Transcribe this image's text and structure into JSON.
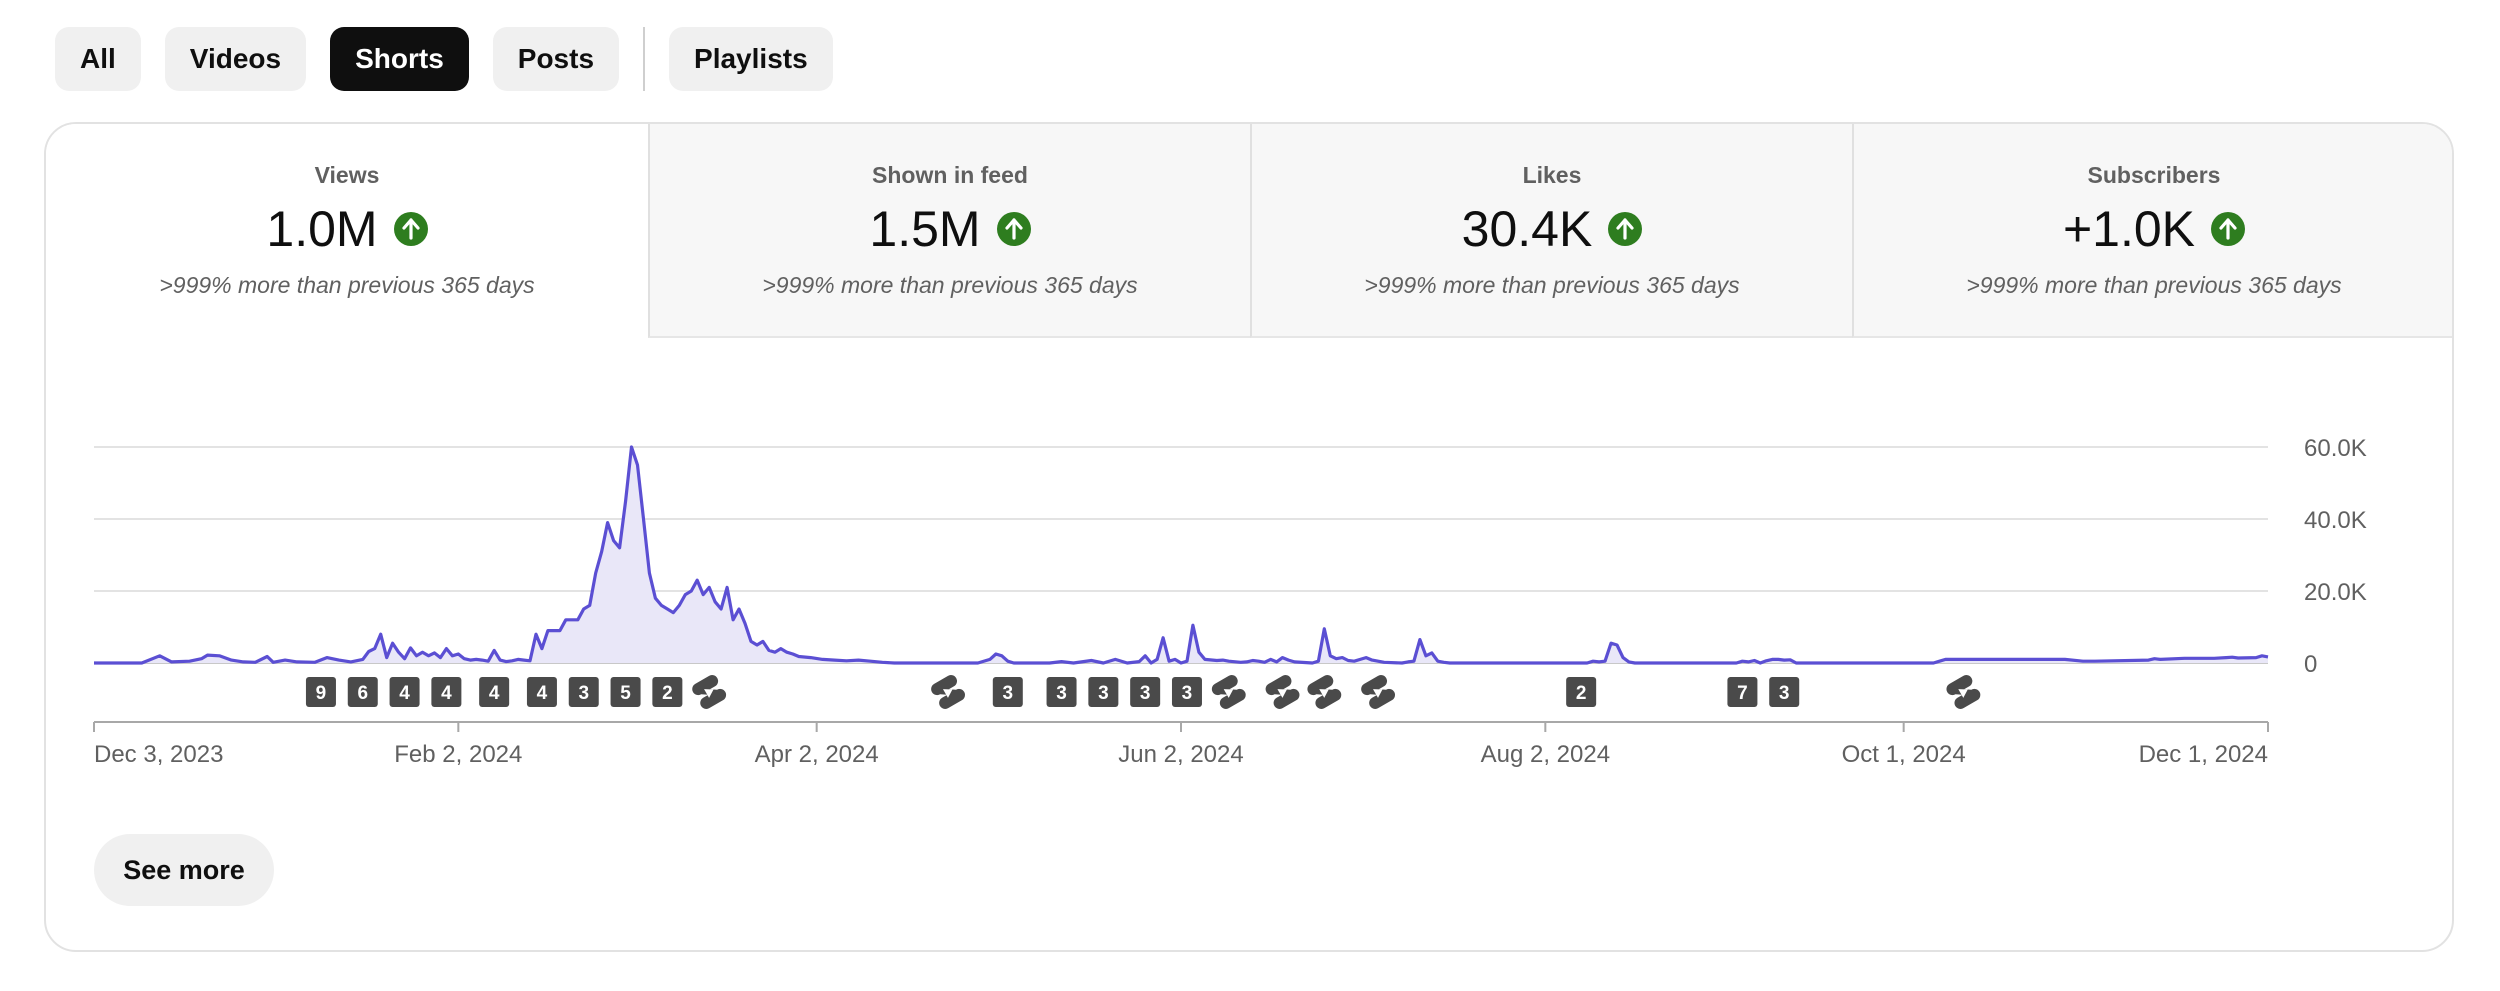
{
  "tabs": [
    {
      "label": "All",
      "active": false
    },
    {
      "label": "Videos",
      "active": false
    },
    {
      "label": "Shorts",
      "active": true
    },
    {
      "label": "Posts",
      "active": false
    },
    {
      "label": "Playlists",
      "active": false
    }
  ],
  "metrics": [
    {
      "label": "Views",
      "value": "1.0M",
      "comparison": ">999% more than previous 365 days",
      "trend": "up",
      "selected": true
    },
    {
      "label": "Shown in feed",
      "value": "1.5M",
      "comparison": ">999% more than previous 365 days",
      "trend": "up",
      "selected": false
    },
    {
      "label": "Likes",
      "value": "30.4K",
      "comparison": ">999% more than previous 365 days",
      "trend": "up",
      "selected": false
    },
    {
      "label": "Subscribers",
      "value": "+1.0K",
      "comparison": ">999% more than previous 365 days",
      "trend": "up",
      "selected": false
    }
  ],
  "colors": {
    "series": "#5b4fd3",
    "area": "#e9e7f8",
    "up_badge": "#2e7d1f",
    "marker": "#4a4a4a"
  },
  "chart_data": {
    "type": "area",
    "title": "Views",
    "x_range": [
      "2023-12-03",
      "2024-12-01"
    ],
    "ylim": [
      0,
      60000
    ],
    "y_ticks": [
      {
        "value": 60000,
        "label": "60.0K"
      },
      {
        "value": 40000,
        "label": "40.0K"
      },
      {
        "value": 20000,
        "label": "20.0K"
      },
      {
        "value": 0,
        "label": "0"
      }
    ],
    "x_ticks": [
      {
        "day": 0,
        "label": "Dec 3, 2023"
      },
      {
        "day": 61,
        "label": "Feb 2, 2024"
      },
      {
        "day": 121,
        "label": "Apr 2, 2024"
      },
      {
        "day": 182,
        "label": "Jun 2, 2024"
      },
      {
        "day": 243,
        "label": "Aug 2, 2024"
      },
      {
        "day": 303,
        "label": "Oct 1, 2024"
      },
      {
        "day": 364,
        "label": "Dec 1, 2024"
      }
    ],
    "series": [
      {
        "name": "Views",
        "points": [
          [
            0,
            0
          ],
          [
            8,
            0
          ],
          [
            11,
            2000
          ],
          [
            13,
            300
          ],
          [
            16,
            500
          ],
          [
            18,
            1200
          ],
          [
            19,
            2200
          ],
          [
            21,
            2000
          ],
          [
            23,
            800
          ],
          [
            25,
            300
          ],
          [
            27,
            200
          ],
          [
            29,
            1800
          ],
          [
            30,
            200
          ],
          [
            32,
            800
          ],
          [
            34,
            300
          ],
          [
            37,
            200
          ],
          [
            39,
            1500
          ],
          [
            41,
            800
          ],
          [
            43,
            300
          ],
          [
            45,
            1000
          ],
          [
            46,
            3200
          ],
          [
            47,
            4000
          ],
          [
            48,
            8000
          ],
          [
            49,
            1500
          ],
          [
            50,
            5500
          ],
          [
            51,
            3000
          ],
          [
            52,
            1200
          ],
          [
            53,
            4200
          ],
          [
            54,
            2000
          ],
          [
            55,
            3000
          ],
          [
            56,
            2000
          ],
          [
            57,
            2800
          ],
          [
            58,
            1500
          ],
          [
            59,
            4000
          ],
          [
            60,
            2000
          ],
          [
            61,
            2500
          ],
          [
            62,
            1200
          ],
          [
            63,
            800
          ],
          [
            64,
            1000
          ],
          [
            65,
            800
          ],
          [
            66,
            500
          ],
          [
            67,
            3500
          ],
          [
            68,
            800
          ],
          [
            69,
            400
          ],
          [
            70,
            600
          ],
          [
            71,
            1000
          ],
          [
            72,
            800
          ],
          [
            73,
            600
          ],
          [
            74,
            8000
          ],
          [
            75,
            4000
          ],
          [
            76,
            9000
          ],
          [
            77,
            9000
          ],
          [
            78,
            9000
          ],
          [
            79,
            12000
          ],
          [
            80,
            12000
          ],
          [
            81,
            12000
          ],
          [
            82,
            15000
          ],
          [
            83,
            16000
          ],
          [
            84,
            25000
          ],
          [
            85,
            31000
          ],
          [
            86,
            39000
          ],
          [
            87,
            34000
          ],
          [
            88,
            32000
          ],
          [
            89,
            45000
          ],
          [
            90,
            60000
          ],
          [
            91,
            55000
          ],
          [
            92,
            40000
          ],
          [
            93,
            25000
          ],
          [
            94,
            18000
          ],
          [
            95,
            16000
          ],
          [
            96,
            15000
          ],
          [
            97,
            14000
          ],
          [
            98,
            16000
          ],
          [
            99,
            19000
          ],
          [
            100,
            20000
          ],
          [
            101,
            23000
          ],
          [
            102,
            19000
          ],
          [
            103,
            21000
          ],
          [
            104,
            17000
          ],
          [
            105,
            15000
          ],
          [
            106,
            21000
          ],
          [
            107,
            12000
          ],
          [
            108,
            15000
          ],
          [
            109,
            11000
          ],
          [
            110,
            6000
          ],
          [
            111,
            5000
          ],
          [
            112,
            6000
          ],
          [
            113,
            3500
          ],
          [
            114,
            3000
          ],
          [
            115,
            4000
          ],
          [
            116,
            3000
          ],
          [
            117,
            2500
          ],
          [
            118,
            1800
          ],
          [
            120,
            1500
          ],
          [
            122,
            1000
          ],
          [
            124,
            800
          ],
          [
            126,
            600
          ],
          [
            128,
            800
          ],
          [
            130,
            500
          ],
          [
            132,
            200
          ],
          [
            134,
            0
          ],
          [
            140,
            0
          ],
          [
            148,
            0
          ],
          [
            150,
            1000
          ],
          [
            151,
            2500
          ],
          [
            152,
            2000
          ],
          [
            153,
            500
          ],
          [
            154,
            0
          ],
          [
            160,
            0
          ],
          [
            162,
            400
          ],
          [
            164,
            0
          ],
          [
            167,
            700
          ],
          [
            169,
            0
          ],
          [
            171,
            1000
          ],
          [
            173,
            0
          ],
          [
            175,
            400
          ],
          [
            176,
            2000
          ],
          [
            177,
            0
          ],
          [
            178,
            1000
          ],
          [
            179,
            7000
          ],
          [
            180,
            500
          ],
          [
            181,
            1000
          ],
          [
            182,
            0
          ],
          [
            183,
            500
          ],
          [
            184,
            10500
          ],
          [
            185,
            3000
          ],
          [
            186,
            1000
          ],
          [
            188,
            700
          ],
          [
            189,
            800
          ],
          [
            190,
            500
          ],
          [
            192,
            200
          ],
          [
            193,
            300
          ],
          [
            194,
            700
          ],
          [
            195,
            500
          ],
          [
            196,
            200
          ],
          [
            197,
            1000
          ],
          [
            198,
            300
          ],
          [
            199,
            1500
          ],
          [
            200,
            800
          ],
          [
            201,
            300
          ],
          [
            204,
            0
          ],
          [
            205,
            500
          ],
          [
            206,
            9500
          ],
          [
            207,
            2000
          ],
          [
            208,
            1200
          ],
          [
            209,
            1500
          ],
          [
            210,
            700
          ],
          [
            211,
            500
          ],
          [
            212,
            1000
          ],
          [
            213,
            1500
          ],
          [
            214,
            800
          ],
          [
            215,
            500
          ],
          [
            216,
            200
          ],
          [
            219,
            0
          ],
          [
            220,
            300
          ],
          [
            221,
            500
          ],
          [
            222,
            6500
          ],
          [
            223,
            2000
          ],
          [
            224,
            2800
          ],
          [
            225,
            500
          ],
          [
            226,
            200
          ],
          [
            227,
            0
          ],
          [
            240,
            0
          ],
          [
            250,
            0
          ],
          [
            251,
            500
          ],
          [
            252,
            300
          ],
          [
            253,
            500
          ],
          [
            254,
            5500
          ],
          [
            255,
            5000
          ],
          [
            256,
            1500
          ],
          [
            257,
            300
          ],
          [
            258,
            0
          ],
          [
            270,
            0
          ],
          [
            275,
            0
          ],
          [
            276,
            500
          ],
          [
            277,
            300
          ],
          [
            278,
            700
          ],
          [
            279,
            0
          ],
          [
            280,
            600
          ],
          [
            281,
            1000
          ],
          [
            282,
            1000
          ],
          [
            283,
            800
          ],
          [
            284,
            900
          ],
          [
            285,
            0
          ],
          [
            300,
            0
          ],
          [
            308,
            0
          ],
          [
            309,
            500
          ],
          [
            310,
            1000
          ],
          [
            320,
            1000
          ],
          [
            330,
            1000
          ],
          [
            333,
            500
          ],
          [
            335,
            500
          ],
          [
            344,
            800
          ],
          [
            345,
            1200
          ],
          [
            346,
            1000
          ],
          [
            350,
            1300
          ],
          [
            355,
            1300
          ],
          [
            357,
            1500
          ],
          [
            358,
            1600
          ],
          [
            359,
            1400
          ],
          [
            362,
            1500
          ],
          [
            363,
            2000
          ],
          [
            364,
            1700
          ]
        ]
      }
    ],
    "content_markers": [
      {
        "day": 38,
        "type": "count",
        "label": "9"
      },
      {
        "day": 45,
        "type": "count",
        "label": "6"
      },
      {
        "day": 52,
        "type": "count",
        "label": "4"
      },
      {
        "day": 59,
        "type": "count",
        "label": "4"
      },
      {
        "day": 67,
        "type": "count",
        "label": "4"
      },
      {
        "day": 75,
        "type": "count",
        "label": "4"
      },
      {
        "day": 82,
        "type": "count",
        "label": "3"
      },
      {
        "day": 89,
        "type": "count",
        "label": "5"
      },
      {
        "day": 96,
        "type": "count",
        "label": "2"
      },
      {
        "day": 103,
        "type": "shorts"
      },
      {
        "day": 143,
        "type": "shorts"
      },
      {
        "day": 153,
        "type": "count",
        "label": "3"
      },
      {
        "day": 162,
        "type": "count",
        "label": "3"
      },
      {
        "day": 169,
        "type": "count",
        "label": "3"
      },
      {
        "day": 176,
        "type": "count",
        "label": "3"
      },
      {
        "day": 183,
        "type": "count",
        "label": "3"
      },
      {
        "day": 190,
        "type": "shorts"
      },
      {
        "day": 199,
        "type": "shorts"
      },
      {
        "day": 206,
        "type": "shorts"
      },
      {
        "day": 215,
        "type": "shorts"
      },
      {
        "day": 249,
        "type": "count",
        "label": "2"
      },
      {
        "day": 276,
        "type": "count",
        "label": "7"
      },
      {
        "day": 283,
        "type": "count",
        "label": "3"
      },
      {
        "day": 313,
        "type": "shorts"
      }
    ]
  },
  "see_more_label": "See more"
}
